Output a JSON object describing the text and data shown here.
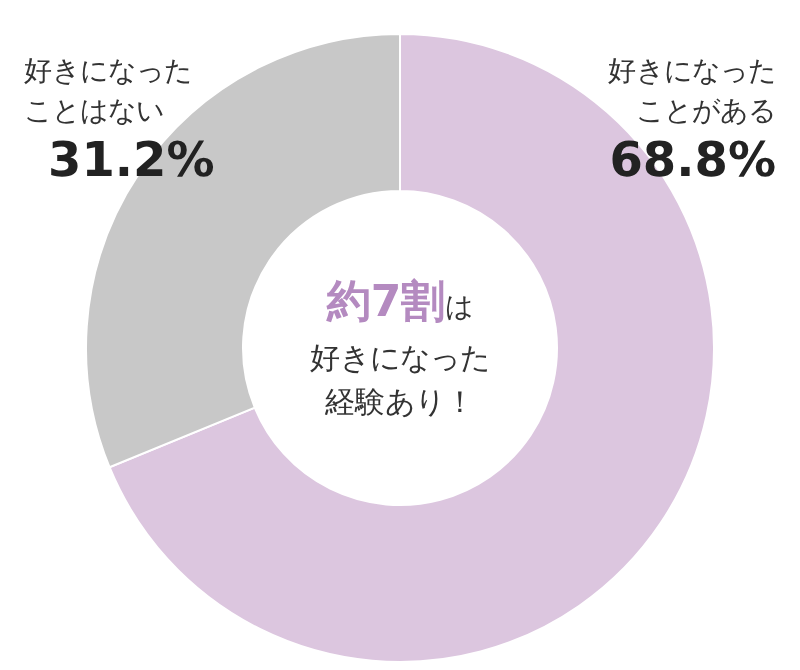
{
  "chart_data": {
    "type": "donut",
    "categories": [
      "好きになったことがある",
      "好きになったことはない"
    ],
    "values": [
      68.8,
      31.2
    ],
    "colors": [
      "#dcc6df",
      "#c8c8c8"
    ],
    "value_labels": [
      "68.8%",
      "31.2%"
    ],
    "annotations": [
      "約7割",
      "は",
      "好きになった",
      "経験あり！"
    ]
  }
}
